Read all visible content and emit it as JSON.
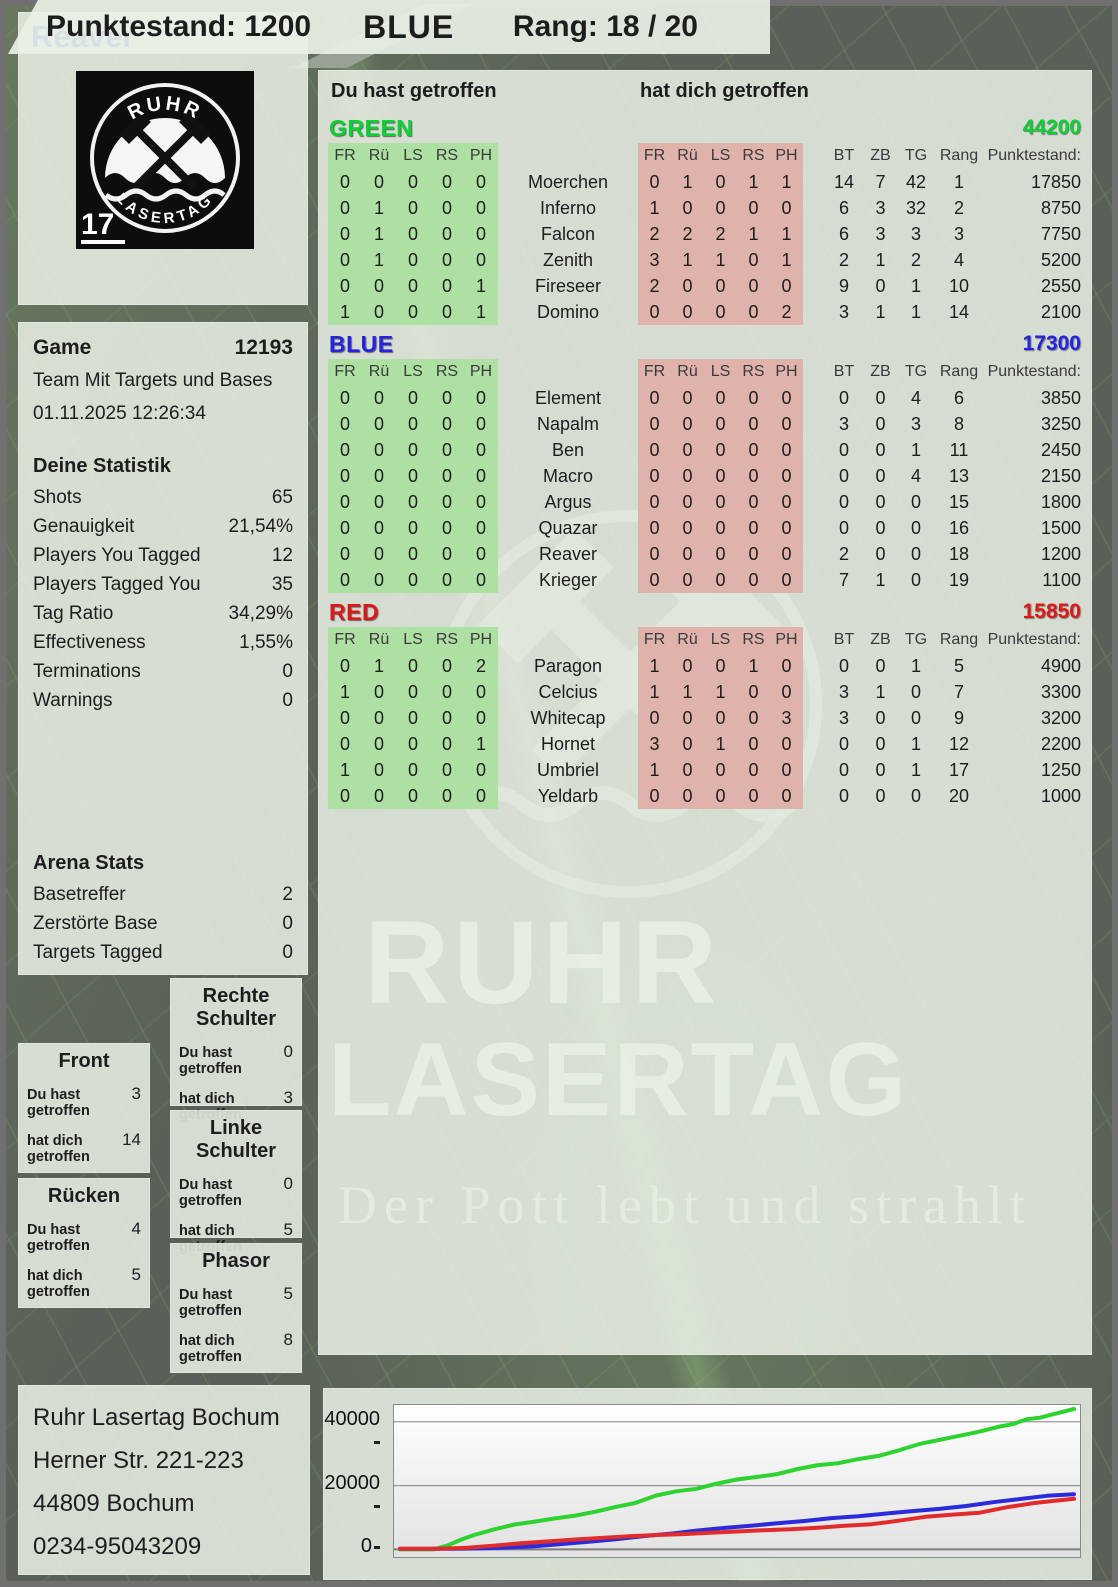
{
  "header": {
    "player_name": "Reaver",
    "punktestand": "Punktestand: 1200",
    "team": "BLUE",
    "rang": "Rang: 18 / 20"
  },
  "logo": {
    "top_text": "RUHR",
    "bottom_text": "LASERTAG",
    "number": "17"
  },
  "watermark": {
    "line1": "RUHR",
    "line2": "LASERTAG",
    "tagline": "Der Pott lebt und strahlt"
  },
  "game_info": {
    "title": "Game",
    "number": "12193",
    "mode": "Team Mit Targets und Bases",
    "datetime": "01.11.2025 12:26:34"
  },
  "your_stats": {
    "title": "Deine Statistik",
    "rows": [
      {
        "label": "Shots",
        "value": "65"
      },
      {
        "label": "Genauigkeit",
        "value": "21,54%"
      },
      {
        "label": "Players You Tagged",
        "value": "12"
      },
      {
        "label": "Players Tagged You",
        "value": "35"
      },
      {
        "label": "Tag Ratio",
        "value": "34,29%"
      },
      {
        "label": "Effectiveness",
        "value": "1,55%"
      },
      {
        "label": "Terminations",
        "value": "0"
      },
      {
        "label": "Warnings",
        "value": "0"
      }
    ]
  },
  "arena_stats": {
    "title": "Arena Stats",
    "rows": [
      {
        "label": "Basetreffer",
        "value": "2"
      },
      {
        "label": "Zerstörte Base",
        "value": "0"
      },
      {
        "label": "Targets Tagged",
        "value": "0"
      }
    ]
  },
  "hit_zones": {
    "you_label": "Du hast getroffen",
    "them_label": "hat dich getroffen",
    "zones": [
      {
        "title": "Front",
        "you": "3",
        "them": "14"
      },
      {
        "title": "Rücken",
        "you": "4",
        "them": "5"
      },
      {
        "title": "Rechte Schulter",
        "you": "0",
        "them": "3"
      },
      {
        "title": "Linke Schulter",
        "you": "0",
        "them": "5"
      },
      {
        "title": "Phasor",
        "you": "5",
        "them": "8"
      }
    ]
  },
  "scoreboard": {
    "you_header": "Du hast getroffen",
    "them_header": "hat dich getroffen",
    "hit_cols": [
      "FR",
      "Rü",
      "LS",
      "RS",
      "PH"
    ],
    "stat_cols": [
      "BT",
      "ZB",
      "TG",
      "Rang",
      "Punktestand:"
    ],
    "teams": [
      {
        "name": "GREEN",
        "color": "#0bd133",
        "total": "44200",
        "players": [
          {
            "name": "Moerchen",
            "you": [
              0,
              0,
              0,
              0,
              0
            ],
            "them": [
              0,
              1,
              0,
              1,
              1
            ],
            "bt": 14,
            "zb": 7,
            "tg": 42,
            "rang": 1,
            "punkte": 17850
          },
          {
            "name": "Inferno",
            "you": [
              0,
              1,
              0,
              0,
              0
            ],
            "them": [
              1,
              0,
              0,
              0,
              0
            ],
            "bt": 6,
            "zb": 3,
            "tg": 32,
            "rang": 2,
            "punkte": 8750
          },
          {
            "name": "Falcon",
            "you": [
              0,
              1,
              0,
              0,
              0
            ],
            "them": [
              2,
              2,
              2,
              1,
              1
            ],
            "bt": 6,
            "zb": 3,
            "tg": 3,
            "rang": 3,
            "punkte": 7750
          },
          {
            "name": "Zenith",
            "you": [
              0,
              1,
              0,
              0,
              0
            ],
            "them": [
              3,
              1,
              1,
              0,
              1
            ],
            "bt": 2,
            "zb": 1,
            "tg": 2,
            "rang": 4,
            "punkte": 5200
          },
          {
            "name": "Fireseer",
            "you": [
              0,
              0,
              0,
              0,
              1
            ],
            "them": [
              2,
              0,
              0,
              0,
              0
            ],
            "bt": 9,
            "zb": 0,
            "tg": 1,
            "rang": 10,
            "punkte": 2550
          },
          {
            "name": "Domino",
            "you": [
              1,
              0,
              0,
              0,
              1
            ],
            "them": [
              0,
              0,
              0,
              0,
              2
            ],
            "bt": 3,
            "zb": 1,
            "tg": 1,
            "rang": 14,
            "punkte": 2100
          }
        ]
      },
      {
        "name": "BLUE",
        "color": "#2424e0",
        "total": "17300",
        "players": [
          {
            "name": "Element",
            "you": [
              0,
              0,
              0,
              0,
              0
            ],
            "them": [
              0,
              0,
              0,
              0,
              0
            ],
            "bt": 0,
            "zb": 0,
            "tg": 4,
            "rang": 6,
            "punkte": 3850
          },
          {
            "name": "Napalm",
            "you": [
              0,
              0,
              0,
              0,
              0
            ],
            "them": [
              0,
              0,
              0,
              0,
              0
            ],
            "bt": 3,
            "zb": 0,
            "tg": 3,
            "rang": 8,
            "punkte": 3250
          },
          {
            "name": "Ben",
            "you": [
              0,
              0,
              0,
              0,
              0
            ],
            "them": [
              0,
              0,
              0,
              0,
              0
            ],
            "bt": 0,
            "zb": 0,
            "tg": 1,
            "rang": 11,
            "punkte": 2450
          },
          {
            "name": "Macro",
            "you": [
              0,
              0,
              0,
              0,
              0
            ],
            "them": [
              0,
              0,
              0,
              0,
              0
            ],
            "bt": 0,
            "zb": 0,
            "tg": 4,
            "rang": 13,
            "punkte": 2150
          },
          {
            "name": "Argus",
            "you": [
              0,
              0,
              0,
              0,
              0
            ],
            "them": [
              0,
              0,
              0,
              0,
              0
            ],
            "bt": 0,
            "zb": 0,
            "tg": 0,
            "rang": 15,
            "punkte": 1800
          },
          {
            "name": "Quazar",
            "you": [
              0,
              0,
              0,
              0,
              0
            ],
            "them": [
              0,
              0,
              0,
              0,
              0
            ],
            "bt": 0,
            "zb": 0,
            "tg": 0,
            "rang": 16,
            "punkte": 1500
          },
          {
            "name": "Reaver",
            "you": [
              0,
              0,
              0,
              0,
              0
            ],
            "them": [
              0,
              0,
              0,
              0,
              0
            ],
            "bt": 2,
            "zb": 0,
            "tg": 0,
            "rang": 18,
            "punkte": 1200
          },
          {
            "name": "Krieger",
            "you": [
              0,
              0,
              0,
              0,
              0
            ],
            "them": [
              0,
              0,
              0,
              0,
              0
            ],
            "bt": 7,
            "zb": 1,
            "tg": 0,
            "rang": 19,
            "punkte": 1100
          }
        ]
      },
      {
        "name": "RED",
        "color": "#e01717",
        "total": "15850",
        "players": [
          {
            "name": "Paragon",
            "you": [
              0,
              1,
              0,
              0,
              2
            ],
            "them": [
              1,
              0,
              0,
              1,
              0
            ],
            "bt": 0,
            "zb": 0,
            "tg": 1,
            "rang": 5,
            "punkte": 4900
          },
          {
            "name": "Celcius",
            "you": [
              1,
              0,
              0,
              0,
              0
            ],
            "them": [
              1,
              1,
              1,
              0,
              0
            ],
            "bt": 3,
            "zb": 1,
            "tg": 0,
            "rang": 7,
            "punkte": 3300
          },
          {
            "name": "Whitecap",
            "you": [
              0,
              0,
              0,
              0,
              0
            ],
            "them": [
              0,
              0,
              0,
              0,
              3
            ],
            "bt": 3,
            "zb": 0,
            "tg": 0,
            "rang": 9,
            "punkte": 3200
          },
          {
            "name": "Hornet",
            "you": [
              0,
              0,
              0,
              0,
              1
            ],
            "them": [
              3,
              0,
              1,
              0,
              0
            ],
            "bt": 0,
            "zb": 0,
            "tg": 1,
            "rang": 12,
            "punkte": 2200
          },
          {
            "name": "Umbriel",
            "you": [
              1,
              0,
              0,
              0,
              0
            ],
            "them": [
              1,
              0,
              0,
              0,
              0
            ],
            "bt": 0,
            "zb": 0,
            "tg": 1,
            "rang": 17,
            "punkte": 1250
          },
          {
            "name": "Yeldarb",
            "you": [
              0,
              0,
              0,
              0,
              0
            ],
            "them": [
              0,
              0,
              0,
              0,
              0
            ],
            "bt": 0,
            "zb": 0,
            "tg": 0,
            "rang": 20,
            "punkte": 1000
          }
        ]
      }
    ]
  },
  "address": {
    "lines": [
      "Ruhr Lasertag Bochum",
      "Herner Str. 221-223",
      "44809 Bochum",
      "0234-95043209"
    ]
  },
  "chart_data": {
    "type": "line",
    "title": "",
    "xlabel": "",
    "ylabel": "",
    "ylim": [
      0,
      45000
    ],
    "yticks": [
      0,
      20000,
      40000
    ],
    "grid": true,
    "legend_position": "none",
    "series": [
      {
        "name": "GREEN",
        "color": "#2fd32f",
        "points": [
          [
            0,
            0
          ],
          [
            5,
            0
          ],
          [
            7,
            1200
          ],
          [
            9,
            3000
          ],
          [
            11,
            4500
          ],
          [
            14,
            6300
          ],
          [
            17,
            7800
          ],
          [
            20,
            8700
          ],
          [
            23,
            9700
          ],
          [
            26,
            10600
          ],
          [
            29,
            11800
          ],
          [
            32,
            13300
          ],
          [
            35,
            14600
          ],
          [
            38,
            16900
          ],
          [
            41,
            18200
          ],
          [
            44,
            19000
          ],
          [
            47,
            20600
          ],
          [
            50,
            21900
          ],
          [
            53,
            22700
          ],
          [
            56,
            23600
          ],
          [
            59,
            25200
          ],
          [
            62,
            26400
          ],
          [
            65,
            27000
          ],
          [
            68,
            28300
          ],
          [
            71,
            29300
          ],
          [
            74,
            31000
          ],
          [
            77,
            33000
          ],
          [
            80,
            34300
          ],
          [
            83,
            35600
          ],
          [
            86,
            36900
          ],
          [
            89,
            38500
          ],
          [
            91,
            39300
          ],
          [
            93,
            40800
          ],
          [
            95,
            41300
          ],
          [
            97,
            42400
          ],
          [
            100,
            44200
          ]
        ]
      },
      {
        "name": "BLUE",
        "color": "#2b2bdc",
        "points": [
          [
            0,
            200
          ],
          [
            8,
            200
          ],
          [
            12,
            300
          ],
          [
            16,
            600
          ],
          [
            20,
            1000
          ],
          [
            24,
            1700
          ],
          [
            28,
            2400
          ],
          [
            32,
            3200
          ],
          [
            36,
            4100
          ],
          [
            40,
            4900
          ],
          [
            44,
            5900
          ],
          [
            48,
            6700
          ],
          [
            52,
            7400
          ],
          [
            56,
            8200
          ],
          [
            60,
            8900
          ],
          [
            64,
            9800
          ],
          [
            68,
            10400
          ],
          [
            72,
            11200
          ],
          [
            76,
            12000
          ],
          [
            80,
            12700
          ],
          [
            84,
            13600
          ],
          [
            88,
            14800
          ],
          [
            92,
            15800
          ],
          [
            96,
            16800
          ],
          [
            100,
            17300
          ]
        ]
      },
      {
        "name": "RED",
        "color": "#e22c2c",
        "points": [
          [
            0,
            200
          ],
          [
            6,
            200
          ],
          [
            10,
            500
          ],
          [
            14,
            1200
          ],
          [
            18,
            1900
          ],
          [
            22,
            2500
          ],
          [
            26,
            3100
          ],
          [
            30,
            3600
          ],
          [
            34,
            4100
          ],
          [
            38,
            4500
          ],
          [
            42,
            4800
          ],
          [
            46,
            5200
          ],
          [
            50,
            5600
          ],
          [
            54,
            6000
          ],
          [
            58,
            6300
          ],
          [
            62,
            6800
          ],
          [
            66,
            7400
          ],
          [
            70,
            7900
          ],
          [
            74,
            9000
          ],
          [
            78,
            10200
          ],
          [
            82,
            10900
          ],
          [
            86,
            11500
          ],
          [
            90,
            13200
          ],
          [
            94,
            14500
          ],
          [
            97,
            15200
          ],
          [
            100,
            15850
          ]
        ]
      }
    ]
  }
}
